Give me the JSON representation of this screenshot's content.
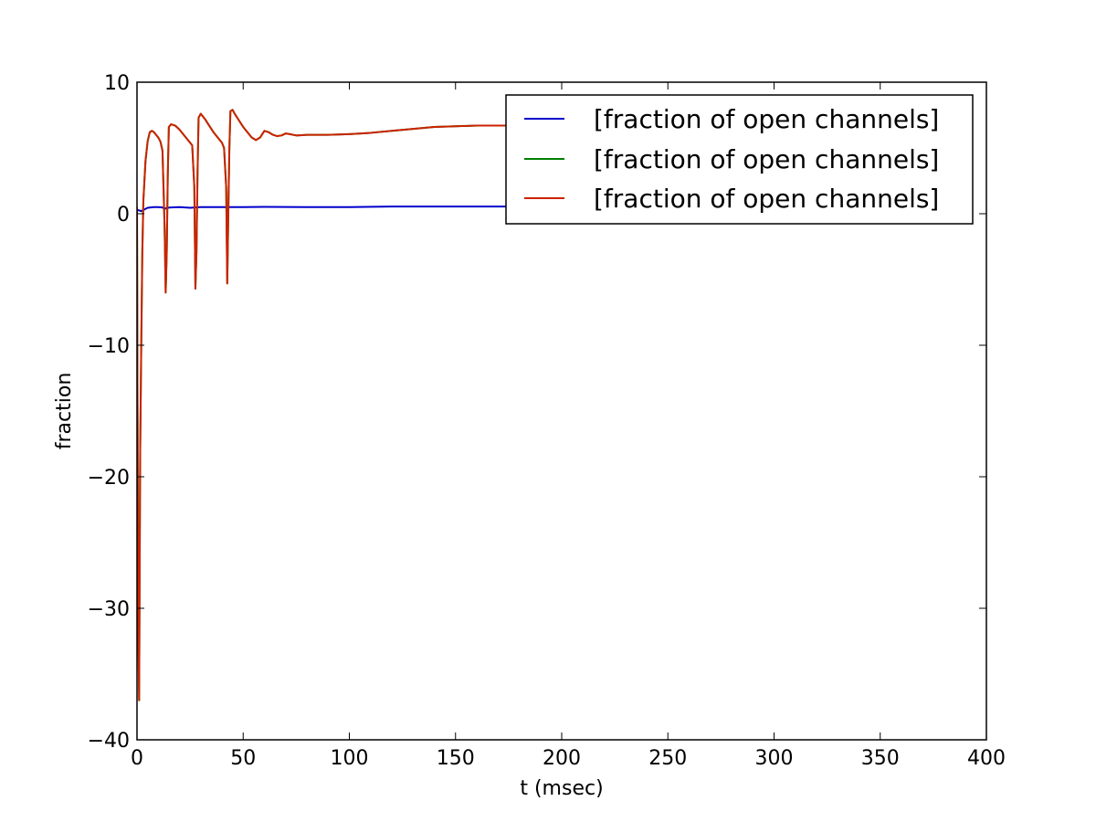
{
  "chart_data": {
    "type": "line",
    "title": "",
    "xlabel": "t (msec)",
    "ylabel": "fraction",
    "xlim": [
      0,
      400
    ],
    "ylim": [
      -40,
      10
    ],
    "xticks": [
      0,
      50,
      100,
      150,
      200,
      250,
      300,
      350,
      400
    ],
    "yticks": [
      -40,
      -30,
      -20,
      -10,
      0,
      10
    ],
    "xtick_labels": [
      "0",
      "50",
      "100",
      "150",
      "200",
      "250",
      "300",
      "350",
      "400"
    ],
    "ytick_labels": [
      "−40",
      "−30",
      "−20",
      "−10",
      "0",
      "10"
    ],
    "grid": false,
    "legend_position": "top-right",
    "series": [
      {
        "name": "[fraction of open channels]",
        "color": "#0000cc",
        "x": [
          0,
          2,
          5,
          8,
          10,
          12,
          13,
          14,
          16,
          20,
          25,
          30,
          40,
          50,
          60,
          80,
          100,
          120,
          150,
          175
        ],
        "y": [
          0.3,
          0.2,
          0.45,
          0.5,
          0.5,
          0.48,
          0.35,
          0.45,
          0.48,
          0.5,
          0.45,
          0.5,
          0.5,
          0.5,
          0.52,
          0.5,
          0.5,
          0.55,
          0.55,
          0.55
        ]
      },
      {
        "name": "[fraction of open channels]",
        "color": "#008000",
        "x": [
          0,
          0.5,
          1.0,
          1.5,
          2,
          2.5,
          3,
          4,
          5,
          6,
          7,
          8,
          10,
          11,
          12,
          13,
          13.5,
          14,
          14.5,
          15,
          16,
          18,
          20,
          22,
          24,
          26,
          27,
          27.5,
          28,
          28.5,
          29,
          30,
          32,
          34,
          36,
          38,
          40,
          41,
          42,
          42.5,
          43,
          43.5,
          44,
          45,
          46,
          48,
          50,
          52,
          54,
          56,
          58,
          60,
          62,
          64,
          66,
          68,
          70,
          72,
          75,
          80,
          90,
          100,
          110,
          120,
          130,
          140,
          150,
          160,
          175
        ],
        "y": [
          0.5,
          -30,
          -37,
          -18,
          -10,
          -3,
          1,
          4,
          5.5,
          6.2,
          6.3,
          6.2,
          5.8,
          5.5,
          4.8,
          -1,
          -6,
          -3,
          3,
          6.6,
          6.8,
          6.7,
          6.4,
          6.0,
          5.6,
          5.2,
          2,
          -5.7,
          -3,
          3,
          7.3,
          7.6,
          7.2,
          6.7,
          6.2,
          5.8,
          5.4,
          5.0,
          2,
          -5.3,
          0,
          5,
          7.8,
          7.9,
          7.6,
          7.1,
          6.6,
          6.2,
          5.8,
          5.6,
          5.8,
          6.3,
          6.2,
          6.0,
          5.9,
          5.95,
          6.1,
          6.05,
          5.95,
          6.0,
          6.0,
          6.05,
          6.15,
          6.3,
          6.45,
          6.6,
          6.65,
          6.7,
          6.7
        ]
      },
      {
        "name": "[fraction of open channels]",
        "color": "#cc2200",
        "x": [
          0,
          0.5,
          1.0,
          1.5,
          2,
          2.5,
          3,
          4,
          5,
          6,
          7,
          8,
          10,
          11,
          12,
          13,
          13.5,
          14,
          14.5,
          15,
          16,
          18,
          20,
          22,
          24,
          26,
          27,
          27.5,
          28,
          28.5,
          29,
          30,
          32,
          34,
          36,
          38,
          40,
          41,
          42,
          42.5,
          43,
          43.5,
          44,
          45,
          46,
          48,
          50,
          52,
          54,
          56,
          58,
          60,
          62,
          64,
          66,
          68,
          70,
          72,
          75,
          80,
          90,
          100,
          110,
          120,
          130,
          140,
          150,
          160,
          175
        ],
        "y": [
          0.5,
          -30,
          -37,
          -18,
          -10,
          -3,
          1,
          4,
          5.5,
          6.2,
          6.3,
          6.2,
          5.8,
          5.5,
          4.8,
          -1,
          -6,
          -3,
          3,
          6.6,
          6.8,
          6.7,
          6.4,
          6.0,
          5.6,
          5.2,
          2,
          -5.7,
          -3,
          3,
          7.3,
          7.6,
          7.2,
          6.7,
          6.2,
          5.8,
          5.4,
          5.0,
          2,
          -5.3,
          0,
          5,
          7.8,
          7.9,
          7.6,
          7.1,
          6.6,
          6.2,
          5.8,
          5.6,
          5.8,
          6.3,
          6.2,
          6.0,
          5.9,
          5.95,
          6.1,
          6.05,
          5.95,
          6.0,
          6.0,
          6.05,
          6.15,
          6.3,
          6.45,
          6.6,
          6.65,
          6.7,
          6.7
        ]
      }
    ]
  }
}
